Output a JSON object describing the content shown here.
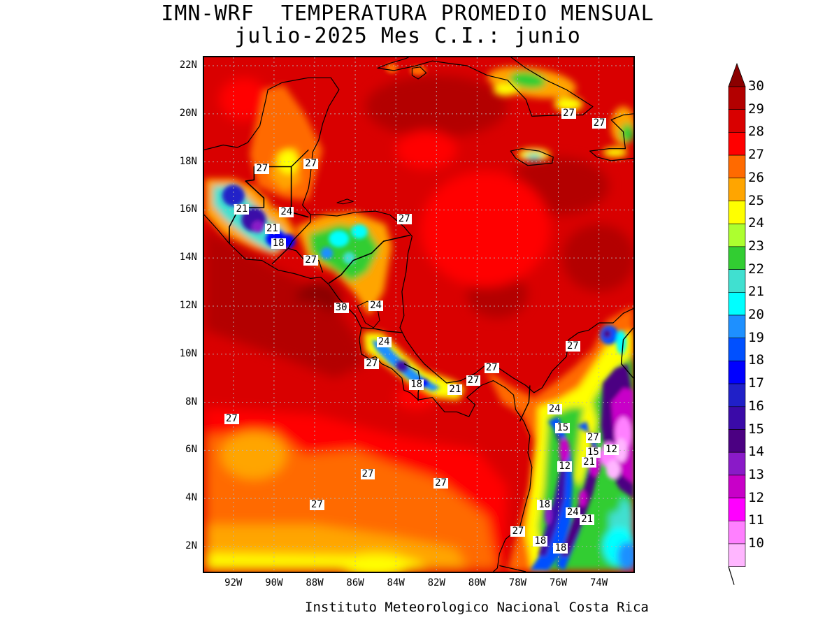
{
  "title": {
    "line1": "IMN-WRF  TEMPERATURA PROMEDIO MENSUAL",
    "line2": "julio-2025 Mes C.I.: junio"
  },
  "footer": "Instituto Meteorologico Nacional Costa Rica",
  "map": {
    "lat_labels": [
      "22N",
      "20N",
      "18N",
      "16N",
      "14N",
      "12N",
      "10N",
      "8N",
      "6N",
      "4N",
      "2N"
    ],
    "lon_labels": [
      "92W",
      "90W",
      "88W",
      "86W",
      "84W",
      "82W",
      "80W",
      "78W",
      "76W",
      "74W"
    ],
    "contour_labels": [
      {
        "text": "27",
        "lon": -75.5,
        "lat": 20.0
      },
      {
        "text": "27",
        "lon": -74.0,
        "lat": 19.6
      },
      {
        "text": "27",
        "lon": -90.6,
        "lat": 17.7
      },
      {
        "text": "27",
        "lon": -88.2,
        "lat": 17.9
      },
      {
        "text": "21",
        "lon": -91.6,
        "lat": 16.0
      },
      {
        "text": "24",
        "lon": -89.4,
        "lat": 15.9
      },
      {
        "text": "27",
        "lon": -83.6,
        "lat": 15.6
      },
      {
        "text": "21",
        "lon": -90.1,
        "lat": 15.2
      },
      {
        "text": "18",
        "lon": -89.8,
        "lat": 14.6
      },
      {
        "text": "27",
        "lon": -88.2,
        "lat": 13.9
      },
      {
        "text": "30",
        "lon": -86.7,
        "lat": 11.9
      },
      {
        "text": "24",
        "lon": -85.0,
        "lat": 12.0
      },
      {
        "text": "24",
        "lon": -84.6,
        "lat": 10.5
      },
      {
        "text": "27",
        "lon": -75.3,
        "lat": 10.3
      },
      {
        "text": "27",
        "lon": -85.2,
        "lat": 9.6
      },
      {
        "text": "27",
        "lon": -79.3,
        "lat": 9.4
      },
      {
        "text": "27",
        "lon": -80.2,
        "lat": 8.9
      },
      {
        "text": "18",
        "lon": -83.0,
        "lat": 8.7
      },
      {
        "text": "21",
        "lon": -81.1,
        "lat": 8.5
      },
      {
        "text": "24",
        "lon": -76.2,
        "lat": 7.7
      },
      {
        "text": "27",
        "lon": -92.1,
        "lat": 7.3
      },
      {
        "text": "15",
        "lon": -75.8,
        "lat": 6.9
      },
      {
        "text": "27",
        "lon": -74.3,
        "lat": 6.5
      },
      {
        "text": "15",
        "lon": -74.3,
        "lat": 5.9
      },
      {
        "text": "12",
        "lon": -73.4,
        "lat": 6.0
      },
      {
        "text": "21",
        "lon": -74.5,
        "lat": 5.5
      },
      {
        "text": "12",
        "lon": -75.7,
        "lat": 5.3
      },
      {
        "text": "27",
        "lon": -85.4,
        "lat": 5.0
      },
      {
        "text": "27",
        "lon": -81.8,
        "lat": 4.6
      },
      {
        "text": "27",
        "lon": -87.9,
        "lat": 3.7
      },
      {
        "text": "18",
        "lon": -76.7,
        "lat": 3.7
      },
      {
        "text": "24",
        "lon": -75.3,
        "lat": 3.4
      },
      {
        "text": "21",
        "lon": -74.6,
        "lat": 3.1
      },
      {
        "text": "27",
        "lon": -78.0,
        "lat": 2.6
      },
      {
        "text": "18",
        "lon": -76.9,
        "lat": 2.2
      },
      {
        "text": "18",
        "lon": -75.9,
        "lat": 1.9
      }
    ]
  },
  "colorbar": {
    "levels": [
      "30",
      "29",
      "28",
      "27",
      "26",
      "25",
      "24",
      "23",
      "22",
      "21",
      "20",
      "19",
      "18",
      "17",
      "16",
      "15",
      "14",
      "13",
      "12",
      "11",
      "10"
    ],
    "colors": {
      "c30": "#8b0000",
      "c29": "#b30000",
      "c28": "#d90000",
      "c27": "#ff0000",
      "c26": "#ff6a00",
      "c25": "#ffa500",
      "c24": "#ffff00",
      "c23": "#adff2f",
      "c22": "#32cd32",
      "c21": "#40e0d0",
      "c20": "#00ffff",
      "c19": "#1e90ff",
      "c18": "#0050ff",
      "c17": "#0000ff",
      "c16": "#2020c8",
      "c15": "#3a0aa8",
      "c14": "#4b0082",
      "c13": "#8a1ac8",
      "c12": "#c800c8",
      "c11": "#ff00ff",
      "c10": "#ff80ff",
      "c9": "#ffb6ff"
    }
  }
}
